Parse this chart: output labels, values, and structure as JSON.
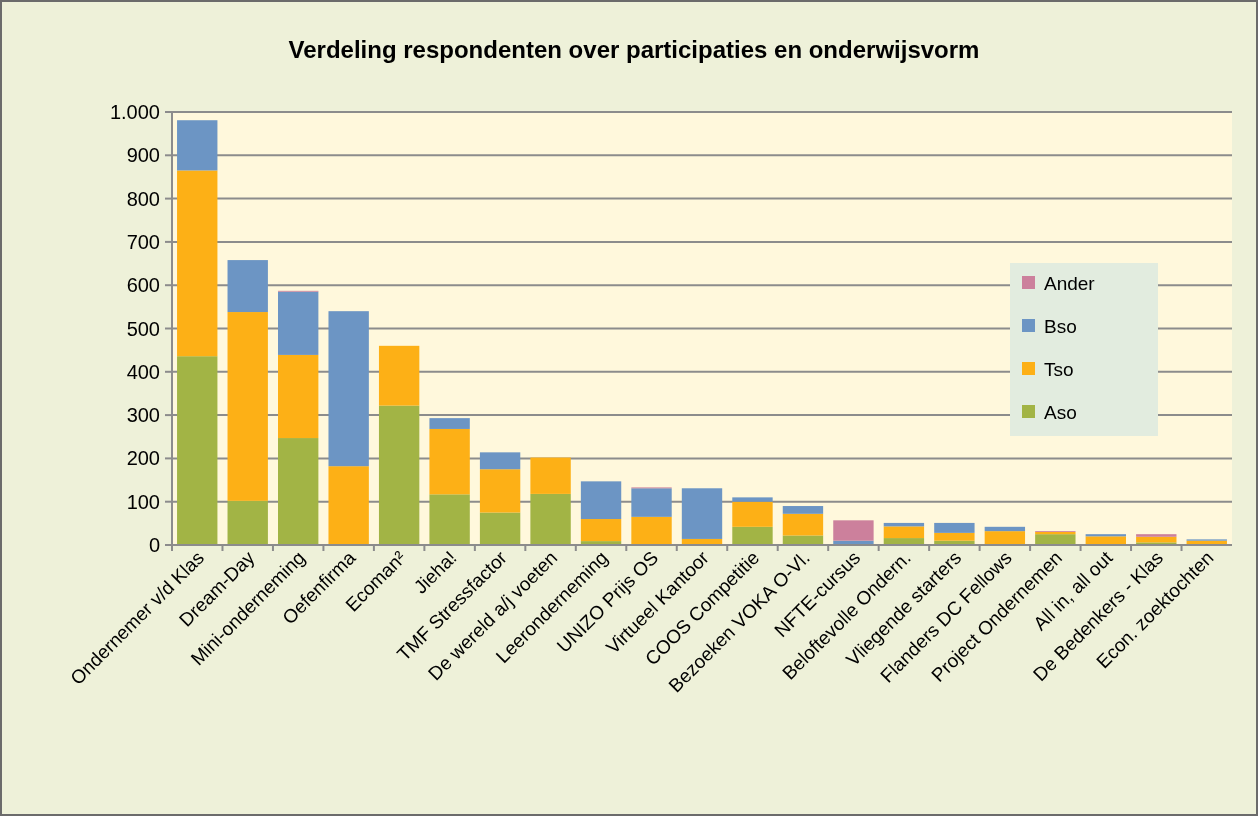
{
  "chart_data": {
    "type": "bar",
    "title": "Verdeling respondenten over participaties en onderwijsvorm",
    "stacked": true,
    "categories": [
      "Ondernemer v/d Klas",
      "Dream-Day",
      "Mini-onderneming",
      "Oefenfirma",
      "Ecoman²",
      "Jieha!",
      "TMF Stressfactor",
      "De wereld a/j voeten",
      "Leeronderneming",
      "UNIZO Prijs OS",
      "Virtueel Kantoor",
      "COOS Competitie",
      "Bezoeken VOKA O-Vl.",
      "NFTE-cursus",
      "Beloftevolle Ondern.",
      "Vliegende starters",
      "Flanders DC Fellows",
      "Project Ondernemen",
      "All in, all out",
      "De Bedenkers - Klas",
      "Econ. zoektochten"
    ],
    "series": [
      {
        "name": "Aso",
        "color": "#a2b445",
        "values": [
          436,
          102,
          247,
          0,
          322,
          117,
          75,
          118,
          9,
          0,
          0,
          42,
          22,
          0,
          16,
          10,
          2,
          25,
          2,
          6,
          2
        ]
      },
      {
        "name": "Tso",
        "color": "#fdb016",
        "values": [
          429,
          436,
          192,
          182,
          138,
          151,
          100,
          84,
          51,
          65,
          14,
          58,
          50,
          0,
          27,
          18,
          30,
          5,
          18,
          13,
          8
        ]
      },
      {
        "name": "Bso",
        "color": "#6c95c4",
        "values": [
          116,
          120,
          146,
          358,
          0,
          25,
          39,
          0,
          87,
          66,
          117,
          10,
          18,
          10,
          8,
          23,
          10,
          0,
          5,
          0,
          3
        ]
      },
      {
        "name": "Ander",
        "color": "#cc809c",
        "values": [
          0,
          0,
          2,
          0,
          0,
          0,
          0,
          0,
          0,
          2,
          0,
          0,
          0,
          47,
          0,
          0,
          0,
          2,
          0,
          6,
          0
        ]
      }
    ],
    "ylim": [
      0,
      1000
    ],
    "yticks": [
      0,
      100,
      200,
      300,
      400,
      500,
      600,
      700,
      800,
      900,
      {
        "value": 1000,
        "label": "1.000"
      }
    ],
    "grid": "y",
    "legend": "right"
  }
}
